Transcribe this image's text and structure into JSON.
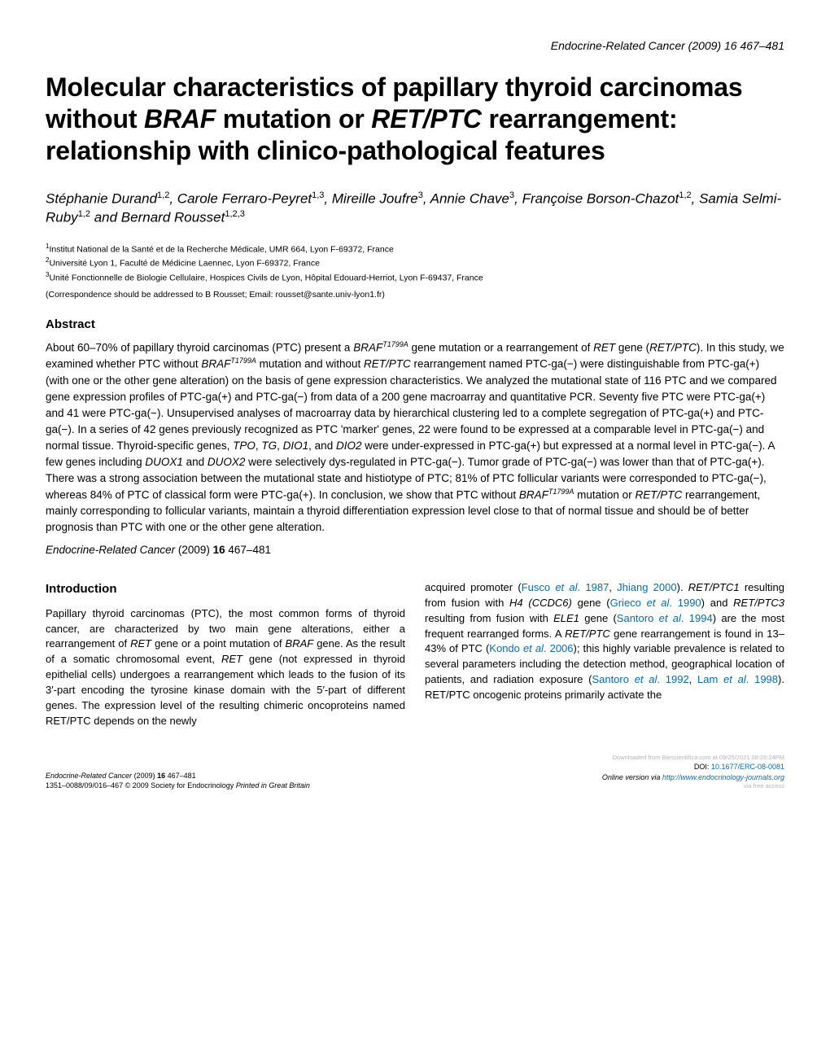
{
  "journal_header": "Endocrine-Related Cancer (2009) 16 467–481",
  "title": {
    "line1_pre": "Molecular characteristics of papillary thyroid carcinomas without ",
    "line1_ital": "BRAF",
    "line1_post": " mutation or ",
    "line1_ital2": "RET/PTC",
    "line1_end": " rearrangement: relationship with clinico-pathological features"
  },
  "authors": {
    "a1_name": "Stéphanie Durand",
    "a1_sup": "1,2",
    "a2_name": "Carole Ferraro-Peyret",
    "a2_sup": "1,3",
    "a3_name": "Mireille Joufre",
    "a3_sup": "3",
    "a4_name": "Annie Chave",
    "a4_sup": "3",
    "a5_name": "Françoise Borson-Chazot",
    "a5_sup": "1,2",
    "a6_name": "Samia Selmi-Ruby",
    "a6_sup": "1,2",
    "a7_name": "Bernard Rousset",
    "a7_sup": "1,2,3"
  },
  "affiliations": {
    "aff1_sup": "1",
    "aff1": "Institut National de la Santé et de la Recherche Médicale, UMR 664, Lyon F-69372, France",
    "aff2_sup": "2",
    "aff2": "Université Lyon 1, Faculté de Médicine Laennec, Lyon F-69372, France",
    "aff3_sup": "3",
    "aff3": "Unité Fonctionnelle de Biologie Cellulaire, Hospices Civils de Lyon, Hôpital Edouard-Herriot, Lyon F-69437, France"
  },
  "correspondence": "(Correspondence should be addressed to B Rousset; Email: rousset@sante.univ-lyon1.fr)",
  "abstract_heading": "Abstract",
  "abstract": {
    "p1a": "About 60–70% of papillary thyroid carcinomas (PTC) present a ",
    "p1_braf": "BRAF",
    "p1_sup1": "T1799A",
    "p1b": " gene mutation or a rearrangement of ",
    "p1_ret": "RET",
    "p1c": " gene (",
    "p1_retptc": "RET/PTC",
    "p1d": "). In this study, we examined whether PTC without ",
    "p1_braf2": "BRAF",
    "p1_sup2": "T1799A",
    "p1e": " mutation and without ",
    "p1_retptc2": "RET/PTC",
    "p1f": " rearrangement named PTC-ga(−) were distinguishable from PTC-ga(+) (with one or the other gene alteration) on the basis of gene expression characteristics. We analyzed the mutational state of 116 PTC and we compared gene expression profiles of PTC-ga(+) and PTC-ga(−) from data of a 200 gene macroarray and quantitative PCR. Seventy five PTC were PTC-ga(+) and 41 were PTC-ga(−). Unsupervised analyses of macroarray data by hierarchical clustering led to a complete segregation of PTC-ga(+) and PTC-ga(−). In a series of 42 genes previously recognized as PTC 'marker' genes, 22 were found to be expressed at a comparable level in PTC-ga(−) and normal tissue. Thyroid-specific genes, ",
    "p1_tpo": "TPO",
    "p1g": ", ",
    "p1_tg": "TG",
    "p1h": ", ",
    "p1_dio1": "DIO1",
    "p1i": ", and ",
    "p1_dio2": "DIO2",
    "p1j": " were under-expressed in PTC-ga(+) but expressed at a normal level in PTC-ga(−). A few genes including ",
    "p1_duox1": "DUOX1",
    "p1k": " and ",
    "p1_duox2": "DUOX2",
    "p1l": " were selectively dys-regulated in PTC-ga(−). Tumor grade of PTC-ga(−) was lower than that of PTC-ga(+). There was a strong association between the mutational state and histiotype of PTC; 81% of PTC follicular variants were corresponded to PTC-ga(−), whereas 84% of PTC of classical form were PTC-ga(+). In conclusion, we show that PTC without ",
    "p1_braf3": "BRAF",
    "p1_sup3": "T1799A",
    "p1m": " mutation or ",
    "p1_retptc3": "RET/PTC",
    "p1n": " rearrangement, mainly corresponding to follicular variants, maintain a thyroid differentiation expression level close to that of normal tissue and should be of better prognosis than PTC with one or the other gene alteration."
  },
  "citation": {
    "journal": "Endocrine-Related Cancer",
    "year": " (2009) ",
    "vol": "16",
    "pages": " 467–481"
  },
  "intro_heading": "Introduction",
  "left_col": {
    "t1": "Papillary thyroid carcinomas (PTC), the most common forms of thyroid cancer, are characterized by two main gene alterations, either a rearrangement of ",
    "i1": "RET",
    "t2": " gene or a point mutation of ",
    "i2": "BRAF",
    "t3": " gene. As the result of a somatic chromosomal event, ",
    "i3": "RET",
    "t4": " gene (not expressed in thyroid epithelial cells) undergoes a rearrangement which leads to the fusion of its 3′-part encoding the tyrosine kinase domain with the 5′-part of different genes. The expression level of the resulting chimeric oncoproteins named RET/PTC depends on the newly"
  },
  "right_col": {
    "t1": "acquired promoter (",
    "l1": "Fusco ",
    "l1i": "et al",
    "l1b": ". 1987",
    "t1b": ", ",
    "l2": "Jhiang 2000",
    "t2": "). ",
    "i1": "RET/PTC1",
    "t3": " resulting from fusion with ",
    "i2": "H4 (CCDC6)",
    "t4": " gene (",
    "l3": "Grieco ",
    "l3i": "et al",
    "l3b": ". 1990",
    "t5": ") and ",
    "i3": "RET/PTC3",
    "t6": " resulting from fusion with ",
    "i4": "ELE1",
    "t7": " gene (",
    "l4": "Santoro ",
    "l4i": "et al",
    "l4b": ". 1994",
    "t8": ") are the most frequent rearranged forms. A ",
    "i5": "RET/PTC",
    "t9": " gene rearrangement is found in 13–43% of PTC (",
    "l5": "Kondo ",
    "l5i": "et al",
    "l5b": ". 2006",
    "t10": "); this highly variable prevalence is related to several parameters including the detection method, geographical location of patients, and radiation exposure (",
    "l6": "Santoro ",
    "l6i": "et al",
    "l6b": ". 1992",
    "t11": ", ",
    "l7": "Lam ",
    "l7i": "et al",
    "l7b": ". 1998",
    "t12": "). RET/PTC oncogenic proteins primarily activate the"
  },
  "footer": {
    "left_journal": "Endocrine-Related Cancer",
    "left_year": " (2009) ",
    "left_vol": "16",
    "left_pages": " 467–481",
    "left_line2": "1351–0088/09/016–467 © 2009 Society for Endocrinology ",
    "left_line2_ital": "Printed in Great Britain",
    "right_fine1": "Downloaded from Bioscientifica.com at 09/25/2021 08:26:24PM",
    "right_doi_label": "DOI: ",
    "right_doi": "10.1677/ERC-08-0081",
    "right_online_pre": "Online version via ",
    "right_online": "http://www.endocrinology-journals.org",
    "right_fine2": "via free access"
  }
}
